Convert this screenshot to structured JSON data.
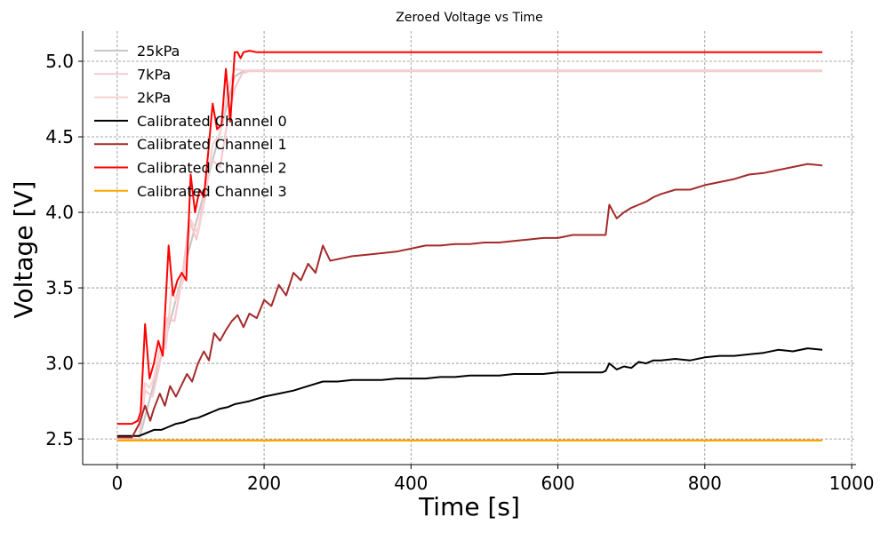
{
  "chart_data": {
    "type": "line",
    "title": "Zeroed Voltage vs Time",
    "xlabel": "Time [s]",
    "ylabel": "Voltage [V]",
    "xlim": [
      -47,
      1006
    ],
    "ylim": [
      2.33,
      5.2
    ],
    "x_ticks": [
      0,
      200,
      400,
      600,
      800,
      1000
    ],
    "y_ticks": [
      2.5,
      3.0,
      3.5,
      4.0,
      4.5,
      5.0
    ],
    "x_tick_labels": [
      "0",
      "200",
      "400",
      "600",
      "800",
      "1000"
    ],
    "y_tick_labels": [
      "2.5",
      "3.0",
      "3.5",
      "4.0",
      "4.5",
      "5.0"
    ],
    "grid": true,
    "legend_position": "upper-left",
    "series": [
      {
        "name": "25kPa",
        "color": "#c8c8c8",
        "x": [
          0,
          30,
          160,
          170,
          180,
          960
        ],
        "y": [
          2.5,
          2.5,
          4.9,
          4.93,
          4.94,
          4.94
        ]
      },
      {
        "name": "7kPa",
        "color": "#f6c9cf",
        "x": [
          0,
          30,
          38,
          48,
          58,
          68,
          78,
          88,
          98,
          108,
          118,
          128,
          140,
          150,
          160,
          170,
          180,
          960
        ],
        "y": [
          2.49,
          2.5,
          2.82,
          2.78,
          3.0,
          3.3,
          3.28,
          3.55,
          3.95,
          3.82,
          4.1,
          4.35,
          4.3,
          4.6,
          4.82,
          4.92,
          4.935,
          4.935
        ]
      },
      {
        "name": "2kPa",
        "color": "#f9d3d3",
        "x": [
          0,
          30,
          38,
          44,
          50,
          58,
          66,
          74,
          80,
          90,
          100,
          110,
          120,
          130,
          140,
          150,
          160,
          170,
          180,
          960
        ],
        "y": [
          2.5,
          2.52,
          2.87,
          2.84,
          2.9,
          3.1,
          3.1,
          3.48,
          3.42,
          3.55,
          3.95,
          3.86,
          4.1,
          4.45,
          4.52,
          4.8,
          4.95,
          4.94,
          4.94,
          4.94
        ]
      },
      {
        "name": "Calibrated Channel 0",
        "color": "#000000",
        "x": [
          0,
          20,
          30,
          40,
          50,
          60,
          70,
          80,
          90,
          100,
          110,
          120,
          130,
          140,
          150,
          160,
          170,
          180,
          200,
          220,
          240,
          260,
          280,
          300,
          320,
          340,
          360,
          380,
          400,
          420,
          440,
          460,
          480,
          500,
          520,
          540,
          560,
          580,
          600,
          620,
          640,
          660,
          665,
          670,
          680,
          690,
          700,
          710,
          720,
          730,
          740,
          760,
          780,
          800,
          820,
          840,
          860,
          880,
          900,
          920,
          940,
          960
        ],
        "y": [
          2.52,
          2.52,
          2.52,
          2.54,
          2.56,
          2.56,
          2.58,
          2.6,
          2.61,
          2.63,
          2.64,
          2.66,
          2.68,
          2.7,
          2.71,
          2.73,
          2.74,
          2.75,
          2.78,
          2.8,
          2.82,
          2.85,
          2.88,
          2.88,
          2.89,
          2.89,
          2.89,
          2.9,
          2.9,
          2.9,
          2.91,
          2.91,
          2.92,
          2.92,
          2.92,
          2.93,
          2.93,
          2.93,
          2.94,
          2.94,
          2.94,
          2.94,
          2.95,
          3.0,
          2.96,
          2.98,
          2.97,
          3.01,
          3.0,
          3.02,
          3.02,
          3.03,
          3.02,
          3.04,
          3.05,
          3.05,
          3.06,
          3.07,
          3.09,
          3.08,
          3.1,
          3.09
        ]
      },
      {
        "name": "Calibrated Channel 1",
        "color": "#a52a2a",
        "x": [
          0,
          20,
          30,
          38,
          45,
          50,
          58,
          65,
          72,
          80,
          88,
          95,
          102,
          110,
          118,
          125,
          132,
          140,
          148,
          156,
          164,
          172,
          180,
          190,
          200,
          210,
          220,
          230,
          240,
          250,
          260,
          270,
          280,
          290,
          300,
          320,
          340,
          360,
          380,
          400,
          420,
          440,
          460,
          480,
          500,
          520,
          540,
          560,
          580,
          600,
          620,
          640,
          660,
          665,
          670,
          680,
          690,
          700,
          710,
          720,
          730,
          740,
          760,
          780,
          800,
          820,
          840,
          860,
          880,
          900,
          920,
          940,
          960
        ],
        "y": [
          2.51,
          2.51,
          2.6,
          2.72,
          2.62,
          2.7,
          2.8,
          2.72,
          2.85,
          2.78,
          2.86,
          2.93,
          2.88,
          3.0,
          3.08,
          3.02,
          3.2,
          3.15,
          3.22,
          3.28,
          3.32,
          3.24,
          3.33,
          3.3,
          3.42,
          3.38,
          3.52,
          3.45,
          3.6,
          3.55,
          3.66,
          3.6,
          3.78,
          3.68,
          3.69,
          3.71,
          3.72,
          3.73,
          3.74,
          3.76,
          3.78,
          3.78,
          3.79,
          3.79,
          3.8,
          3.8,
          3.81,
          3.82,
          3.83,
          3.83,
          3.85,
          3.85,
          3.85,
          3.85,
          4.05,
          3.96,
          4.0,
          4.03,
          4.05,
          4.07,
          4.1,
          4.12,
          4.15,
          4.15,
          4.18,
          4.2,
          4.22,
          4.25,
          4.26,
          4.28,
          4.3,
          4.32,
          4.31
        ]
      },
      {
        "name": "Calibrated Channel 2",
        "color": "#ff0000",
        "x": [
          0,
          20,
          28,
          32,
          38,
          44,
          50,
          56,
          62,
          70,
          76,
          82,
          88,
          94,
          100,
          106,
          112,
          118,
          124,
          130,
          136,
          142,
          148,
          154,
          160,
          164,
          168,
          172,
          180,
          190,
          960
        ],
        "y": [
          2.6,
          2.6,
          2.62,
          2.68,
          3.26,
          2.9,
          3.0,
          3.15,
          3.05,
          3.78,
          3.45,
          3.55,
          3.6,
          3.55,
          4.25,
          4.0,
          4.15,
          4.1,
          4.4,
          4.72,
          4.55,
          4.58,
          4.95,
          4.6,
          5.06,
          5.06,
          5.02,
          5.06,
          5.07,
          5.06,
          5.06
        ]
      },
      {
        "name": "Calibrated Channel 3",
        "color": "#ffa500",
        "x": [
          0,
          960
        ],
        "y": [
          2.49,
          2.49
        ]
      }
    ]
  }
}
